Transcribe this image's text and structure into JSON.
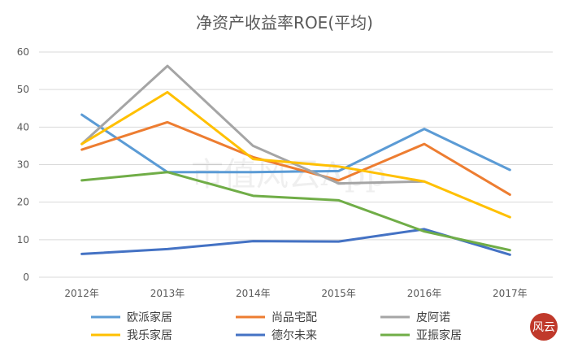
{
  "chart_data": {
    "type": "line",
    "title": "净资产收益率ROE(平均)",
    "categories": [
      "2012年",
      "2013年",
      "2014年",
      "2015年",
      "2016年",
      "2017年"
    ],
    "ylim": [
      0,
      60
    ],
    "yticks": [
      0,
      10,
      20,
      30,
      40,
      50,
      60
    ],
    "grid": true,
    "legend_position": "bottom",
    "series": [
      {
        "name": "欧派家居",
        "color": "#5b9bd5",
        "values": [
          43.3,
          28.0,
          28.0,
          28.3,
          39.5,
          28.6
        ]
      },
      {
        "name": "尚品宅配",
        "color": "#ed7d31",
        "values": [
          34.0,
          41.3,
          32.0,
          25.8,
          35.5,
          22.0
        ]
      },
      {
        "name": "皮阿诺",
        "color": "#a5a5a5",
        "values": [
          35.5,
          56.3,
          35.0,
          25.0,
          25.5,
          null
        ]
      },
      {
        "name": "我乐家居",
        "color": "#ffc000",
        "values": [
          35.5,
          49.3,
          31.5,
          29.5,
          25.5,
          16.0
        ]
      },
      {
        "name": "德尔未来",
        "color": "#4472c4",
        "values": [
          6.2,
          7.5,
          9.6,
          9.5,
          12.8,
          6.0
        ]
      },
      {
        "name": "亚振家居",
        "color": "#70ad47",
        "values": [
          25.8,
          28.0,
          21.7,
          20.5,
          12.2,
          7.2
        ]
      }
    ]
  },
  "watermark": {
    "text": "市值风云App"
  },
  "logo": {
    "text": "风云"
  }
}
